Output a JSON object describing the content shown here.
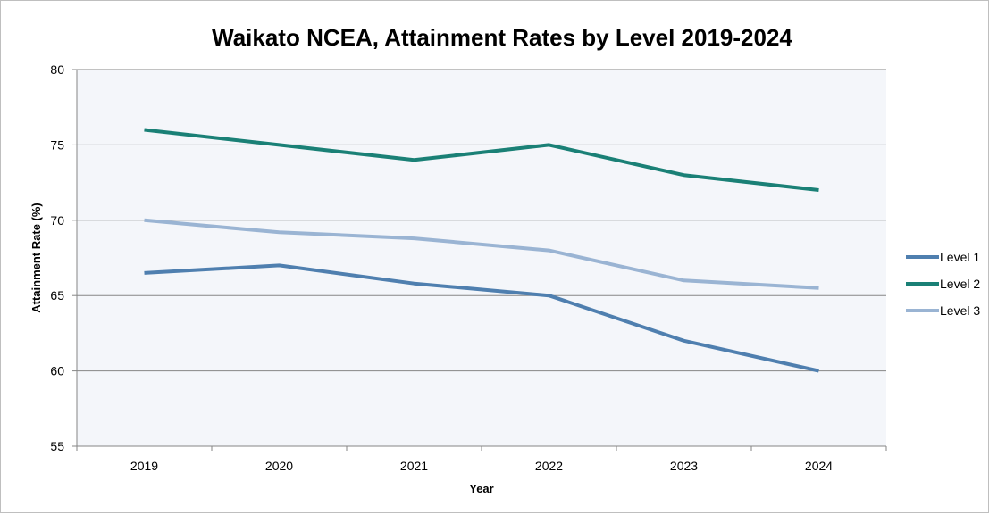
{
  "chart_data": {
    "type": "line",
    "title": "Waikato NCEA, Attainment Rates by Level 2019-2024",
    "xlabel": "Year",
    "ylabel": "Attainment Rate (%)",
    "x": [
      "2019",
      "2020",
      "2021",
      "2022",
      "2023",
      "2024"
    ],
    "ylim": [
      55,
      80
    ],
    "yticks": [
      55,
      60,
      65,
      70,
      75,
      80
    ],
    "grid": true,
    "legend_position": "right",
    "plot_background": "#f4f6fa",
    "series": [
      {
        "name": "Level 1",
        "color": "#4f7faf",
        "values": [
          66.5,
          67,
          65.8,
          65,
          62,
          60
        ]
      },
      {
        "name": "Level 2",
        "color": "#1a8076",
        "values": [
          76,
          75,
          74,
          75,
          73,
          72
        ]
      },
      {
        "name": "Level 3",
        "color": "#9ab4d3",
        "values": [
          70,
          69.2,
          68.8,
          68,
          66,
          65.5
        ]
      }
    ]
  }
}
